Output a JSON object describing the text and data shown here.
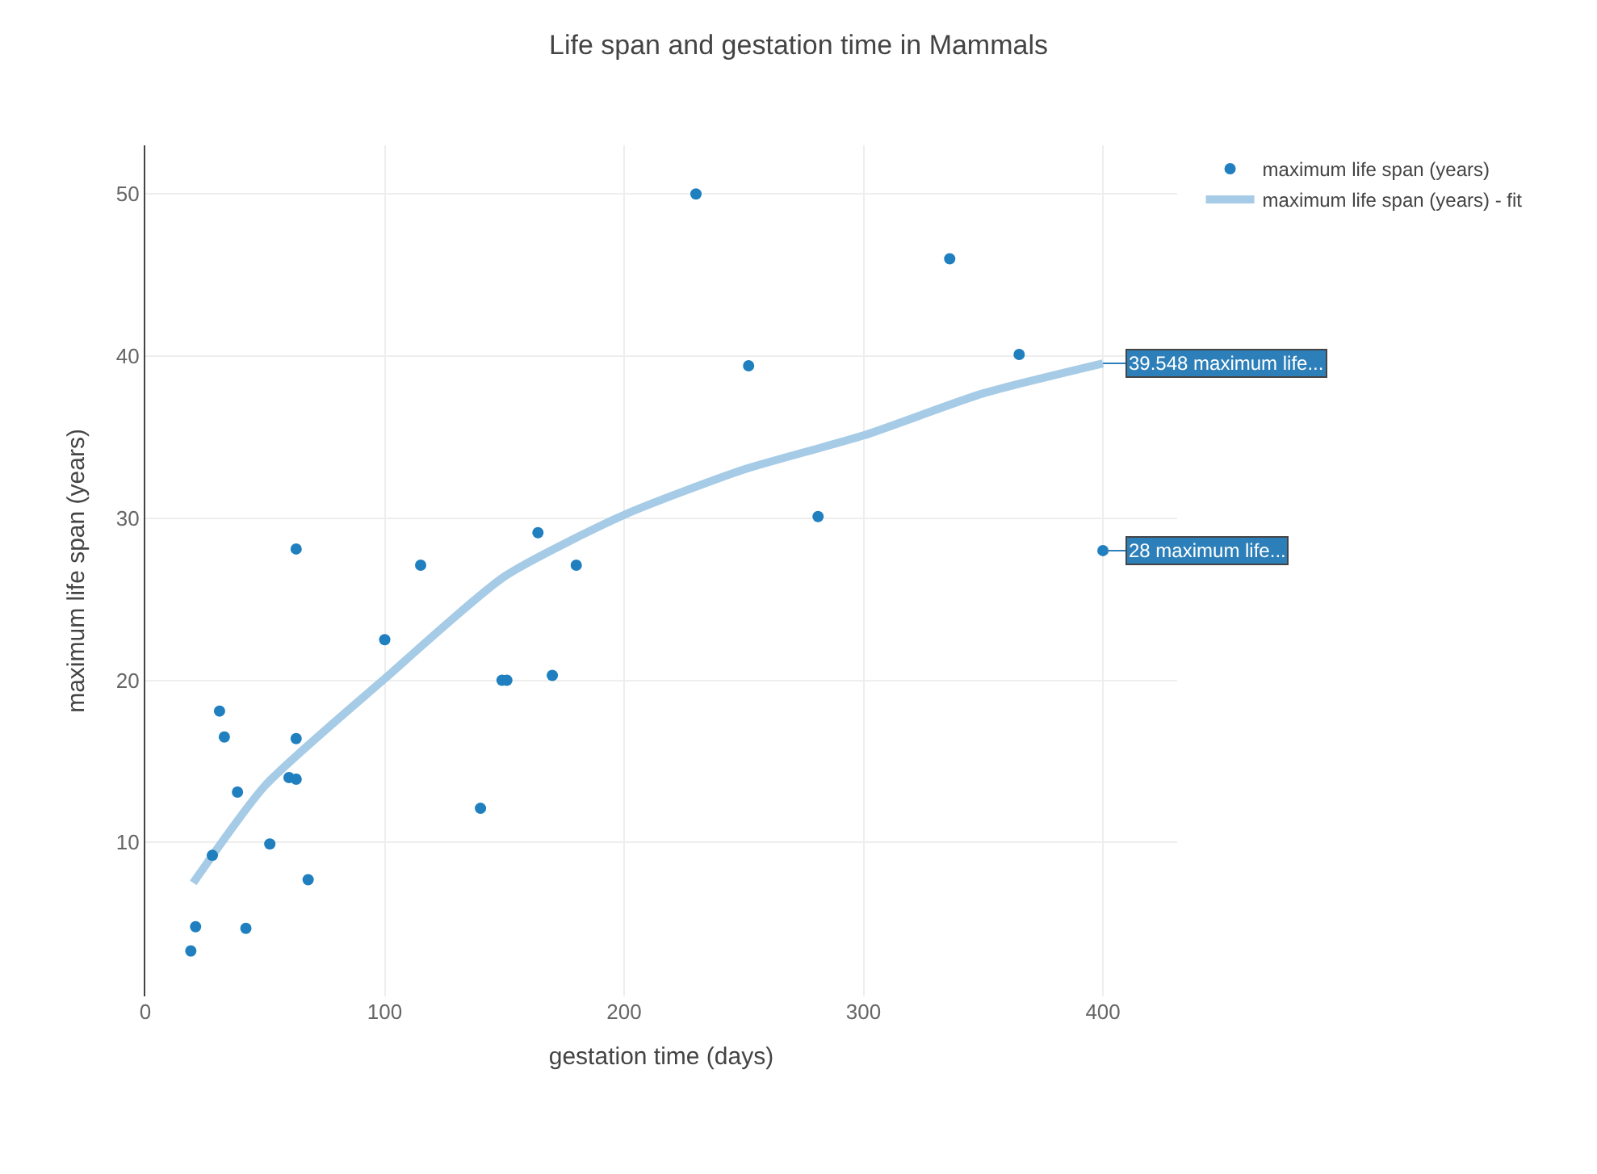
{
  "chart_data": {
    "type": "scatter",
    "title": "Life span and gestation time in Mammals",
    "xlabel": "gestation time (days)",
    "ylabel": "maximum life span (years)",
    "x": [
      19,
      21,
      28,
      31,
      33,
      38.5,
      42,
      52,
      60,
      63,
      63,
      63,
      68,
      100,
      115,
      140,
      149,
      151,
      164,
      170,
      180,
      230,
      252,
      281,
      336,
      365,
      400
    ],
    "series": [
      {
        "name": "maximum life span (years)",
        "color": "#1f7fbf",
        "values": [
          3.3,
          4.8,
          9.2,
          18.1,
          16.5,
          13.1,
          4.7,
          9.9,
          14,
          16.4,
          13.9,
          28.1,
          7.7,
          22.5,
          27.1,
          12.1,
          20,
          20,
          29.1,
          20.3,
          27.1,
          50,
          39.4,
          30.1,
          46,
          40.1,
          28
        ]
      },
      {
        "name": "maximum life span (years) - fit",
        "type": "line",
        "marker": "none",
        "color": "#a6cbe6",
        "x": [
          20,
          50,
          100,
          150,
          200,
          250,
          300,
          350,
          400
        ],
        "values": [
          7.5,
          13.5,
          20.1,
          26.4,
          30.2,
          33,
          35.1,
          37.7,
          39.548
        ]
      }
    ],
    "xlim": [
      0,
      431
    ],
    "xticks": [
      0,
      100,
      200,
      300,
      400
    ],
    "ylim": [
      0.5,
      53
    ],
    "yticks": [
      10,
      20,
      30,
      40,
      50
    ],
    "grid": true,
    "legend": "top right",
    "marker": "circle",
    "annotations": [
      {
        "text": "39.548 maximum life...",
        "x": 400,
        "y": 39.548
      },
      {
        "text": "28 maximum life...",
        "x": 400,
        "y": 28
      }
    ]
  }
}
